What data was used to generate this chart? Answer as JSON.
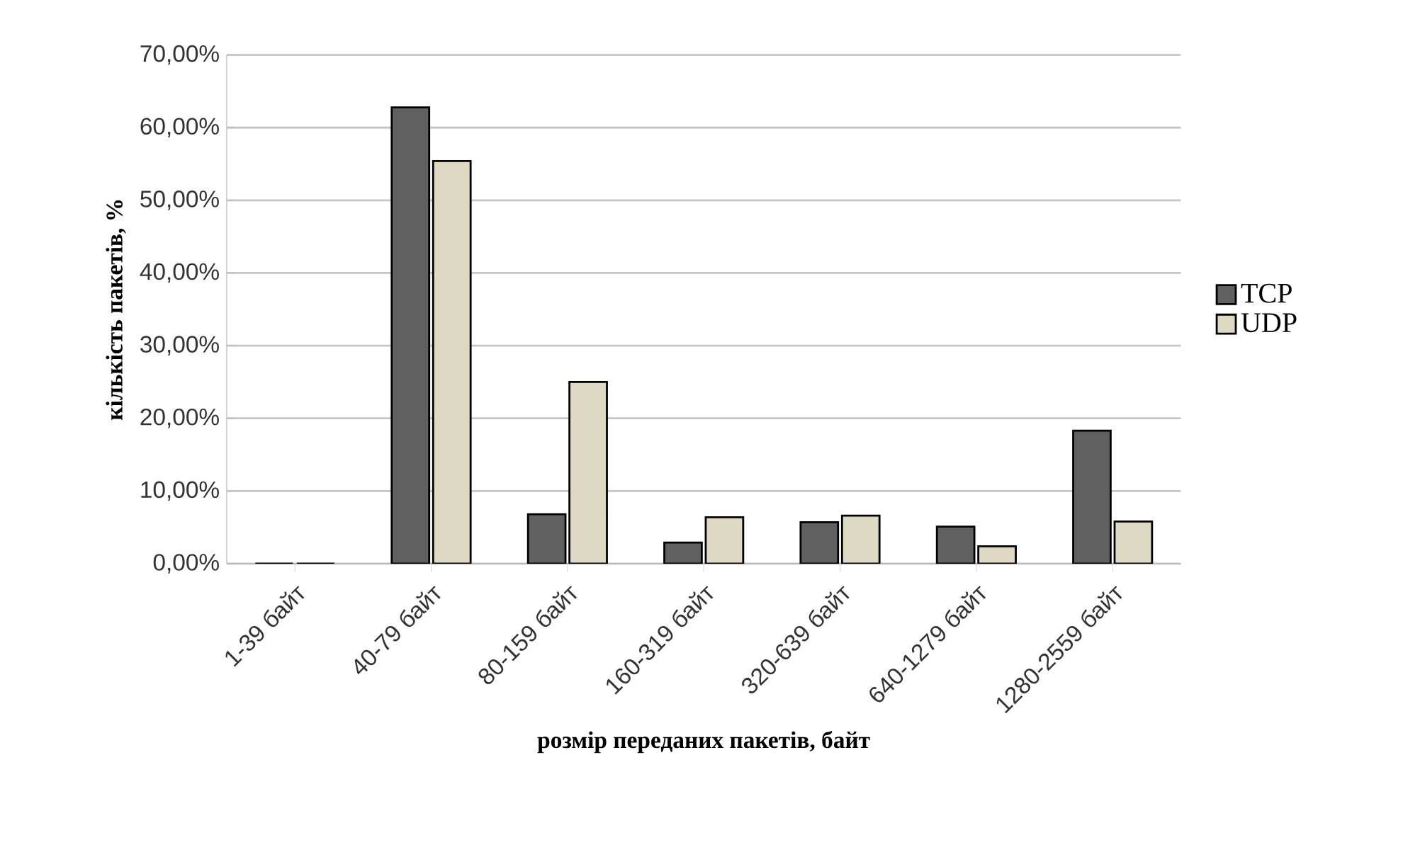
{
  "chart_data": {
    "type": "bar",
    "xlabel": "розмір переданих пакетів, байт",
    "ylabel": "кількість пакетів, %",
    "categories": [
      "1-39 байт",
      "40-79 байт",
      "80-159 байт",
      "160-319 байт",
      "320-639 байт",
      "640-1279 байт",
      "1280-2559 байт"
    ],
    "series": [
      {
        "name": "TCP",
        "color": "#606060",
        "values": [
          0,
          62.8,
          6.8,
          2.9,
          5.7,
          5.1,
          18.3
        ]
      },
      {
        "name": "UDP",
        "color": "#ddd9c3",
        "values": [
          0,
          55.4,
          25.0,
          6.4,
          6.6,
          2.4,
          5.8
        ]
      }
    ],
    "ylim": [
      0,
      70
    ],
    "yticks": [
      {
        "value": 0,
        "label": "0,00%"
      },
      {
        "value": 10,
        "label": "10,00%"
      },
      {
        "value": 20,
        "label": "20,00%"
      },
      {
        "value": 30,
        "label": "30,00%"
      },
      {
        "value": 40,
        "label": "40,00%"
      },
      {
        "value": 50,
        "label": "50,00%"
      },
      {
        "value": 60,
        "label": "60,00%"
      },
      {
        "value": 70,
        "label": "70,00%"
      }
    ],
    "grid": "y",
    "legend": "right"
  }
}
